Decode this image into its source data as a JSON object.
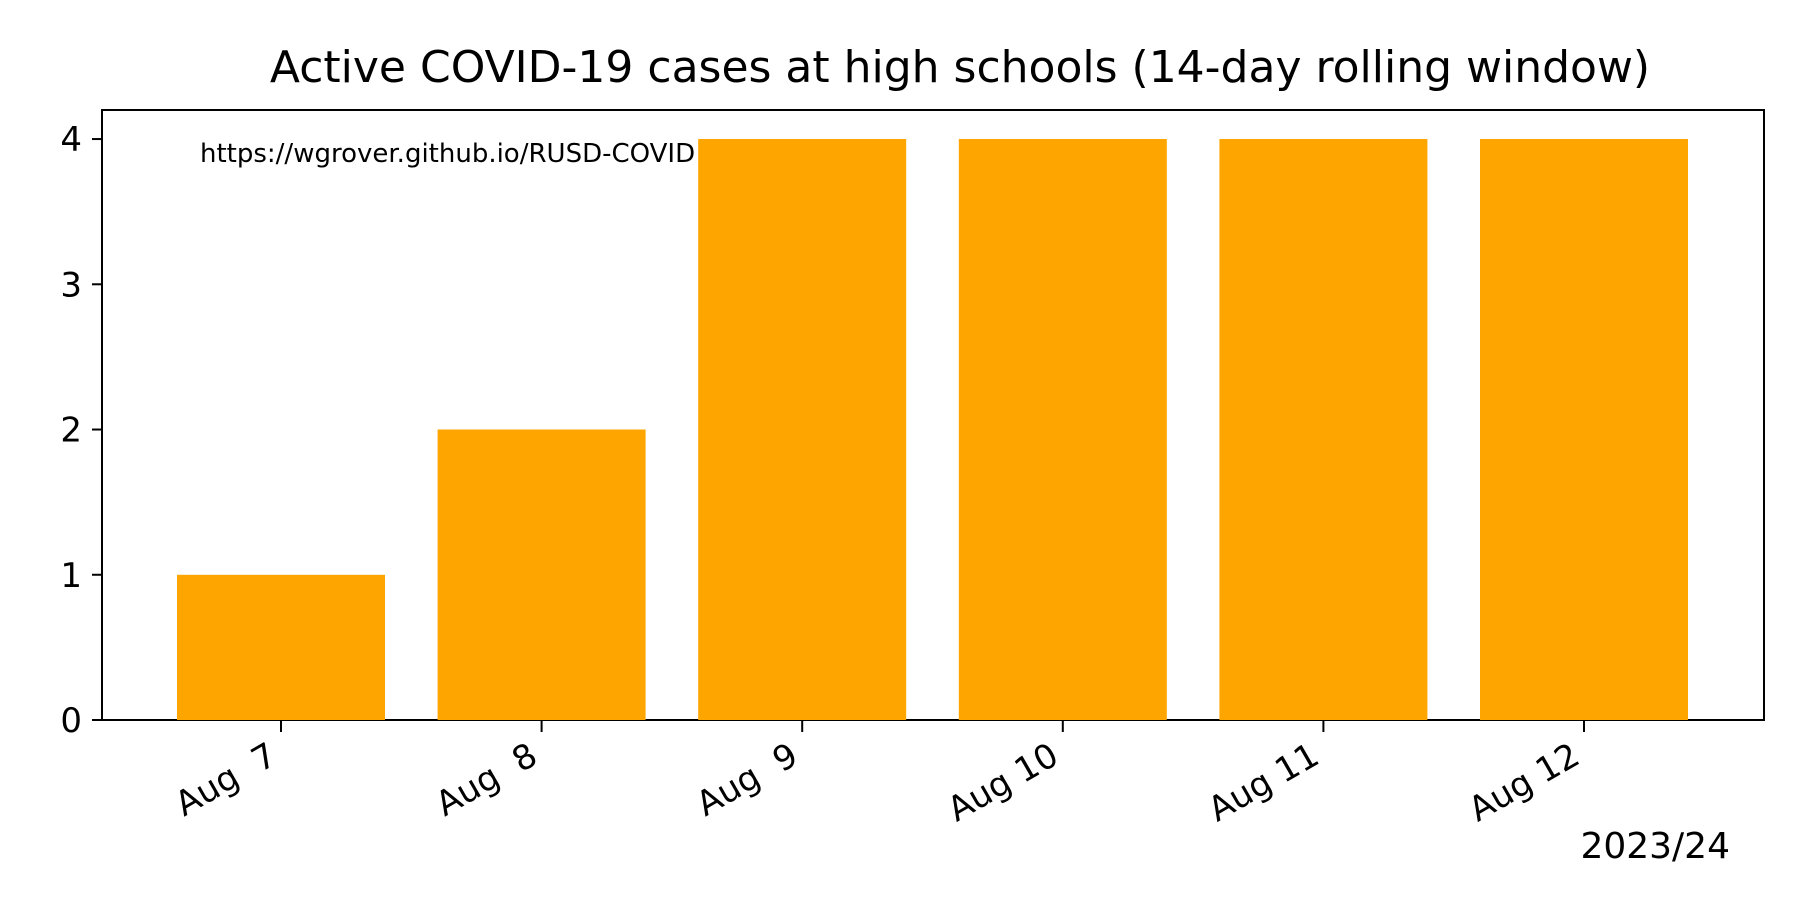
{
  "chart_data": {
    "type": "bar",
    "title": "Active COVID-19 cases at high schools (14-day rolling window)",
    "xlabel": "",
    "ylabel": "",
    "categories": [
      "Aug  7",
      "Aug  8",
      "Aug  9",
      "Aug 10",
      "Aug 11",
      "Aug 12"
    ],
    "values": [
      1,
      2,
      4,
      4,
      4,
      4
    ],
    "ylim": [
      0,
      4.2
    ],
    "yticks": [
      0,
      1,
      2,
      3,
      4
    ],
    "bar_color": "#FFA500",
    "grid": false,
    "legend": "none",
    "annotation": "https://wgrover.github.io/RUSD-COVID",
    "season_label": "2023/24"
  }
}
